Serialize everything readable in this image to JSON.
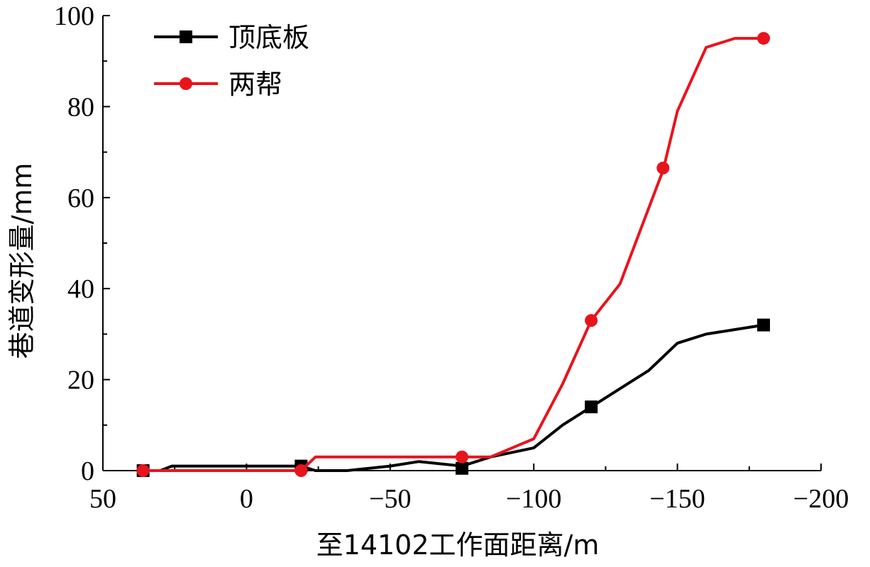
{
  "chart_data": {
    "type": "line",
    "xlabel": "至14102工作面距离/m",
    "ylabel": "巷道变形量/mm",
    "xlim": [
      50,
      -200
    ],
    "ylim": [
      0,
      100
    ],
    "xticks": [
      50,
      0,
      -50,
      -100,
      -150,
      -200
    ],
    "xtick_labels": [
      "50",
      "0",
      "−50",
      "−100",
      "−150",
      "−200"
    ],
    "yticks": [
      0,
      20,
      40,
      60,
      80,
      100
    ],
    "ytick_labels": [
      "0",
      "20",
      "40",
      "60",
      "80",
      "100"
    ],
    "grid": false,
    "legend_position": "top-left",
    "series": [
      {
        "name": "顶底板",
        "color": "#000000",
        "marker": "square",
        "x": [
          36,
          30,
          26,
          0,
          -19,
          -24,
          -35,
          -50,
          -60,
          -75,
          -85,
          -100,
          -110,
          -120,
          -130,
          -140,
          -150,
          -160,
          -170,
          -180
        ],
        "y": [
          0,
          0,
          1,
          1,
          1,
          0,
          0,
          1,
          2,
          1,
          3,
          5,
          10,
          14,
          18,
          22,
          28,
          30,
          31,
          32
        ],
        "marker_x": [
          36,
          -19,
          -75,
          -120,
          -180
        ],
        "marker_y": [
          0,
          1,
          0.5,
          14,
          32
        ]
      },
      {
        "name": "两帮",
        "color": "#e8141c",
        "marker": "circle",
        "x": [
          36,
          15,
          0,
          -19,
          -24,
          -50,
          -75,
          -85,
          -100,
          -110,
          -120,
          -130,
          -145,
          -150,
          -160,
          -170,
          -180
        ],
        "y": [
          0,
          0,
          0,
          0,
          3,
          3,
          3,
          3,
          7,
          19,
          33,
          41,
          66,
          79,
          93,
          95,
          95
        ],
        "marker_x": [
          36,
          -19,
          -75,
          -120,
          -145,
          -180
        ],
        "marker_y": [
          0,
          0,
          3,
          33,
          66.5,
          95
        ]
      }
    ]
  }
}
